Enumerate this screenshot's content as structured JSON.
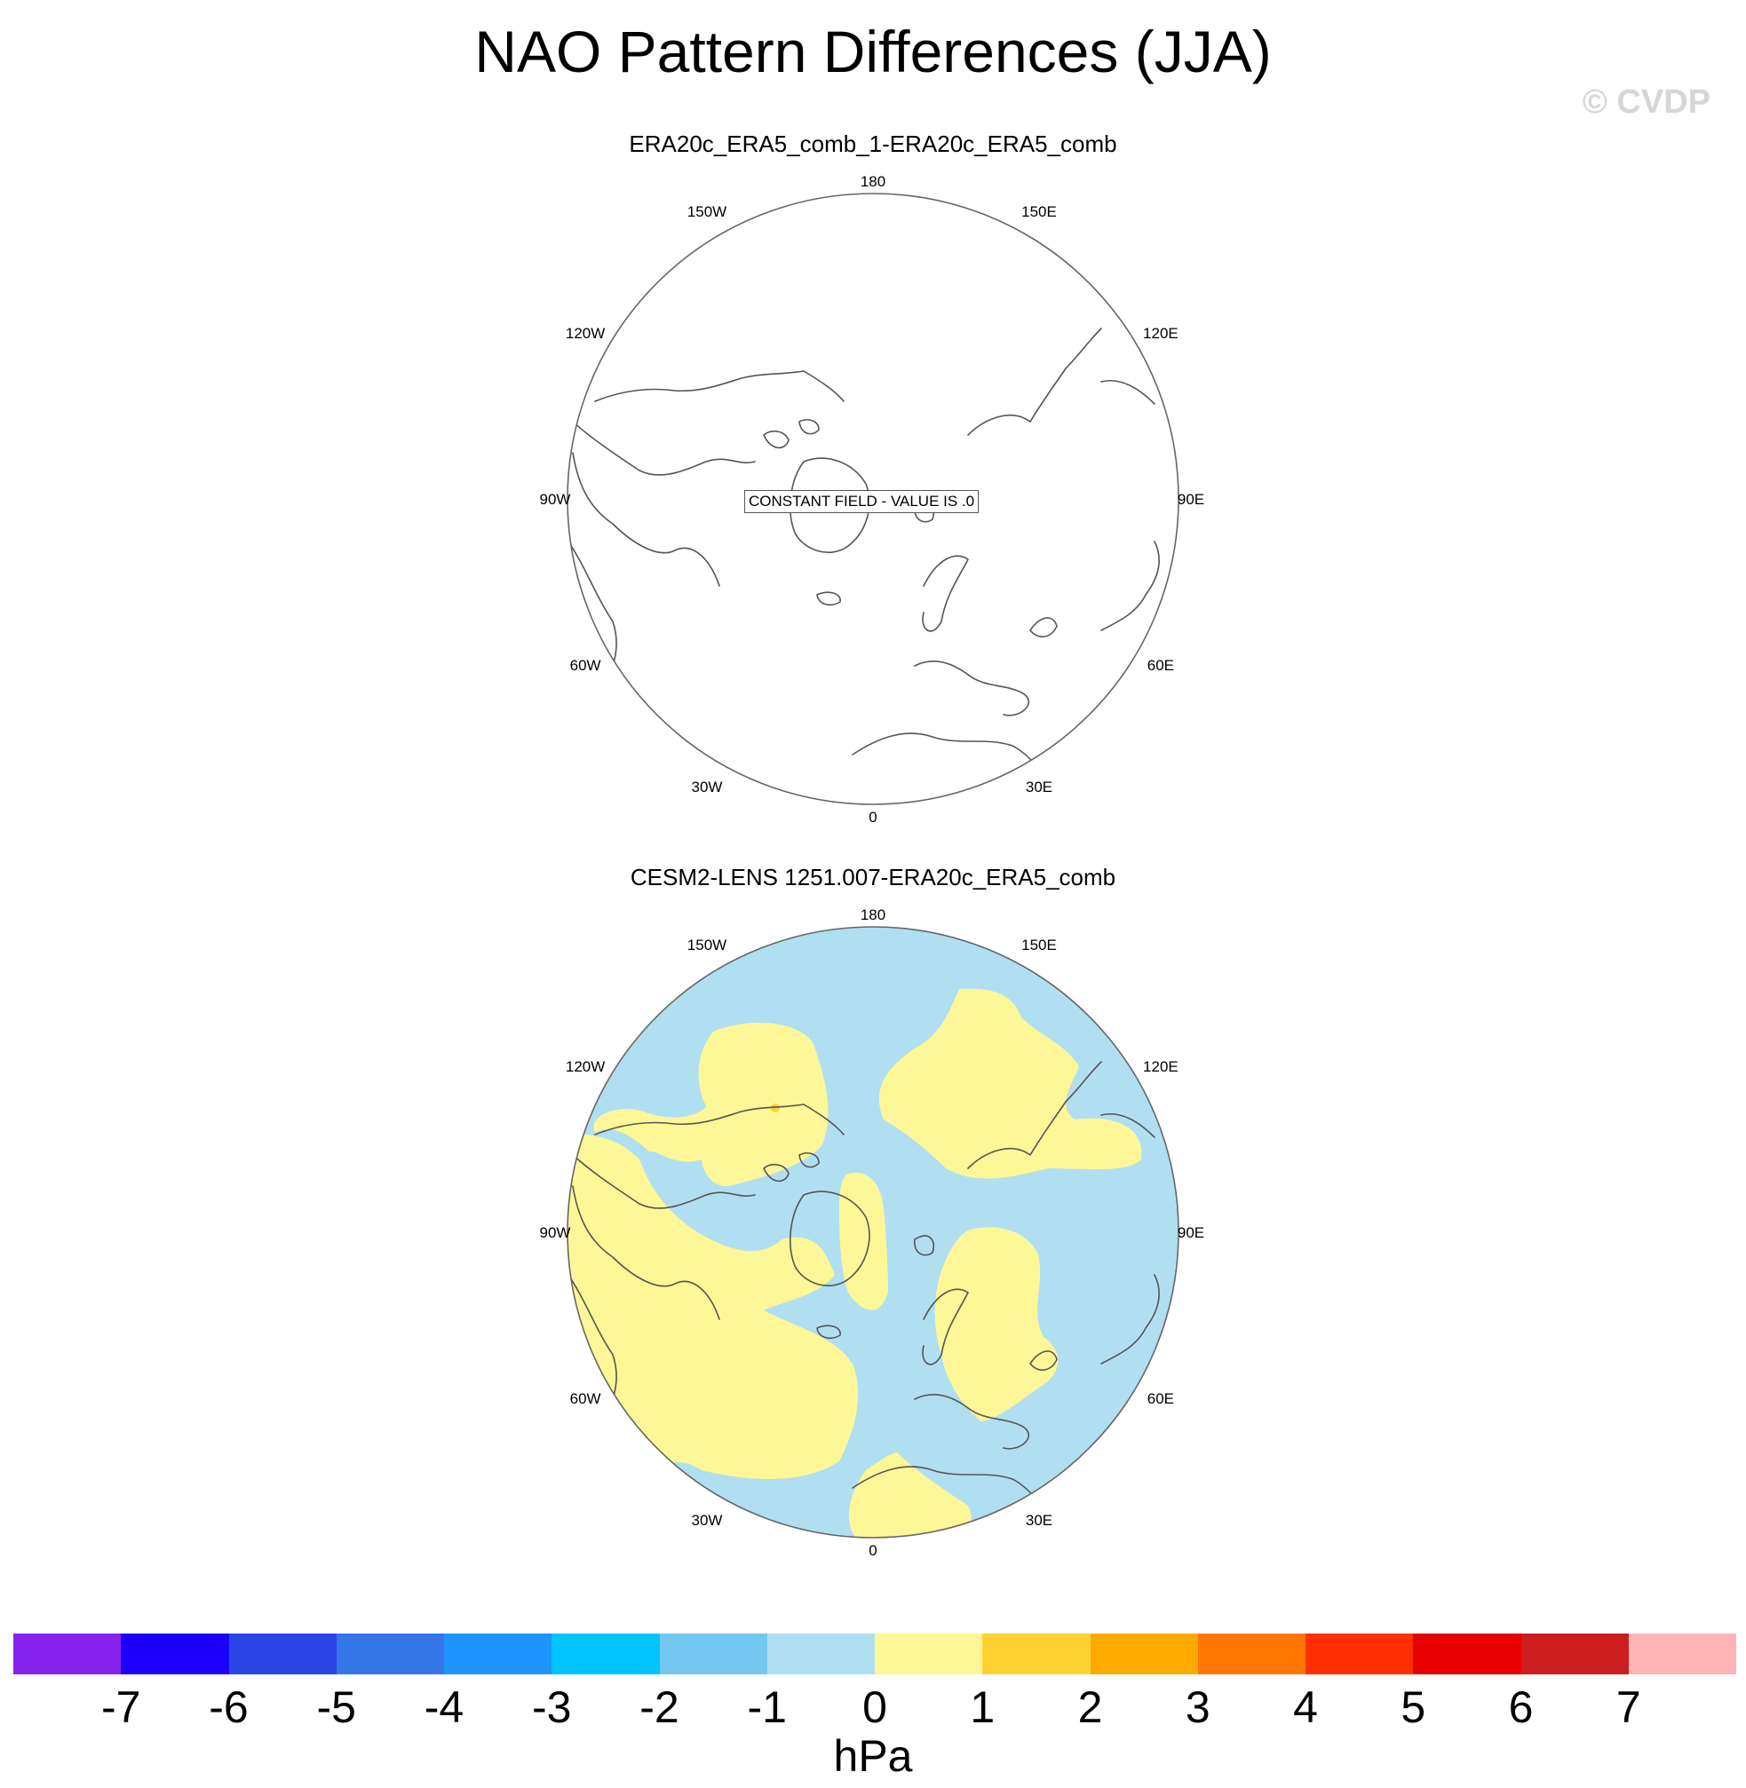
{
  "title": "NAO Pattern Differences (JJA)",
  "watermark": "© CVDP",
  "panels": [
    {
      "title": "ERA20c_ERA5_comb_1-ERA20c_ERA5_comb",
      "note": "CONSTANT FIELD - VALUE IS .0",
      "lon_labels": [
        "180",
        "150E",
        "120E",
        "90E",
        "60E",
        "30E",
        "0",
        "30W",
        "60W",
        "90W",
        "120W",
        "150W"
      ]
    },
    {
      "title": "CESM2-LENS 1251.007-ERA20c_ERA5_comb",
      "lon_labels": [
        "180",
        "150E",
        "120E",
        "90E",
        "60E",
        "30E",
        "0",
        "30W",
        "60W",
        "90W",
        "120W",
        "150W"
      ],
      "fill_colors": {
        "negative_0_to_1": "#b1dff2",
        "positive_0_to_1": "#fef797",
        "positive_1_to_2": "#fed232"
      }
    }
  ],
  "colorbar": {
    "colors": [
      "#8722ee",
      "#1b00fe",
      "#2c45e6",
      "#3476e8",
      "#1e94fe",
      "#00c4fe",
      "#74c7f0",
      "#b1dff2",
      "#fef797",
      "#fed232",
      "#ffaa00",
      "#ff7700",
      "#ff2f00",
      "#e70000",
      "#cc1e1e",
      "#ffb5b5"
    ],
    "labels": [
      "-7",
      "-6",
      "-5",
      "-4",
      "-3",
      "-2",
      "-1",
      "0",
      "1",
      "2",
      "3",
      "4",
      "5",
      "6",
      "7"
    ],
    "units": "hPa"
  }
}
